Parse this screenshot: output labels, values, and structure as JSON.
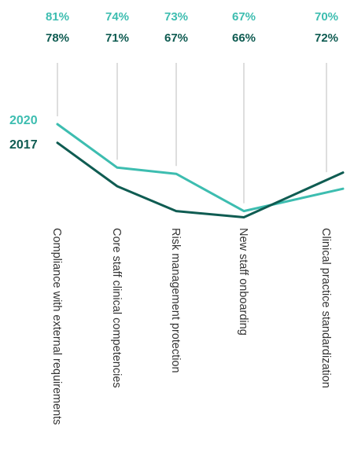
{
  "chart_data": {
    "type": "line",
    "categories": [
      "Compliance with external requirements",
      "Core staff clinical competencies",
      "Risk management protection",
      "New staff onboarding",
      "Clinical practice standardization"
    ],
    "series": [
      {
        "name": "2020",
        "values": [
          81,
          74,
          73,
          67,
          70
        ],
        "labels": [
          "81%",
          "74%",
          "73%",
          "67%",
          "70%"
        ],
        "color": "#3dbdb0"
      },
      {
        "name": "2017",
        "values": [
          78,
          71,
          67,
          66,
          72
        ],
        "labels": [
          "78%",
          "71%",
          "67%",
          "66%",
          "72%"
        ],
        "color": "#0f5c52"
      }
    ],
    "title": "",
    "xlabel": "",
    "ylabel": "",
    "grid": false,
    "legend": "inline-left"
  },
  "colors": {
    "teal_light": "#3dbdb0",
    "teal_dark": "#0f5c52",
    "guide": "#bdbdbd",
    "label": "#333333"
  }
}
